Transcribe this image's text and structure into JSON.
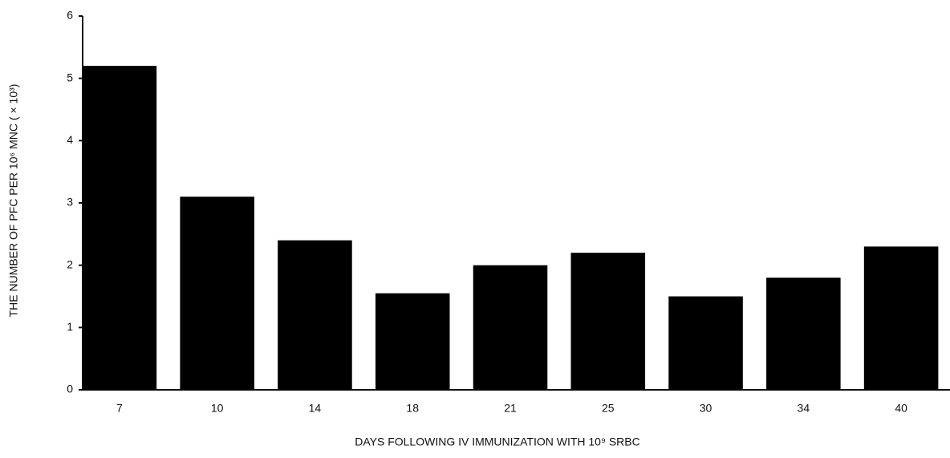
{
  "chart_data": {
    "type": "bar",
    "x_label": "DAYS FOLLOWING IV  IMMUNIZATION WITH 10⁹ SRBC",
    "y_label": "THE NUMBER OF PFC PER 10⁶ MNC ( × 10³)",
    "categories": [
      "7",
      "10",
      "14",
      "18",
      "21",
      "25",
      "30",
      "34",
      "40"
    ],
    "values": [
      5.2,
      3.1,
      2.4,
      1.55,
      2.0,
      2.2,
      1.5,
      1.8,
      2.3
    ],
    "color": "#000000",
    "ylim": [
      0,
      6
    ],
    "yticks": [
      0,
      1,
      2,
      3,
      4,
      5,
      6
    ],
    "grid": false
  }
}
